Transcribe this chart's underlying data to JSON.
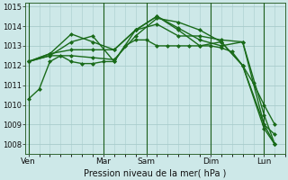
{
  "bg_color": "#cde8e8",
  "grid_color": "#a8cccc",
  "line_color": "#1a6b1a",
  "xlabel": "Pression niveau de la mer( hPa )",
  "ylim": [
    1007.5,
    1015.2
  ],
  "yticks": [
    1008,
    1009,
    1010,
    1011,
    1012,
    1013,
    1014,
    1015
  ],
  "xtick_labels": [
    "Ven",
    "Mar",
    "Sam",
    "Dim",
    "Lun"
  ],
  "xtick_positions": [
    0,
    7,
    11,
    17,
    22
  ],
  "vlines": [
    0,
    7,
    11,
    17,
    22
  ],
  "xlim": [
    -0.3,
    24.0
  ],
  "lines": [
    {
      "x": [
        0,
        1,
        2,
        3,
        4,
        5,
        6,
        7,
        8,
        9,
        10,
        11,
        12,
        13,
        14,
        15,
        16,
        17,
        18,
        19,
        20,
        21,
        22,
        23
      ],
      "y": [
        1010.3,
        1010.8,
        1012.2,
        1012.5,
        1012.2,
        1012.1,
        1012.1,
        1012.2,
        1012.2,
        1013.0,
        1013.3,
        1013.3,
        1013.0,
        1013.0,
        1013.0,
        1013.0,
        1013.0,
        1013.0,
        1012.9,
        1012.7,
        1012.0,
        1011.1,
        1010.0,
        1009.0
      ],
      "marker": "D",
      "lw": 1.0
    },
    {
      "x": [
        0,
        2,
        4,
        6,
        8,
        10,
        12,
        14,
        16,
        18,
        20,
        22,
        23
      ],
      "y": [
        1012.2,
        1012.5,
        1012.5,
        1012.4,
        1012.3,
        1013.5,
        1014.4,
        1014.2,
        1013.8,
        1013.2,
        1012.0,
        1009.0,
        1008.0
      ],
      "marker": "D",
      "lw": 1.0
    },
    {
      "x": [
        0,
        2,
        4,
        6,
        8,
        10,
        12,
        14,
        16,
        18,
        20,
        22,
        23
      ],
      "y": [
        1012.2,
        1012.6,
        1012.8,
        1012.8,
        1012.8,
        1013.8,
        1014.5,
        1013.8,
        1013.0,
        1013.2,
        1012.0,
        1008.8,
        1008.0
      ],
      "marker": "D",
      "lw": 1.0
    },
    {
      "x": [
        0,
        2,
        4,
        6,
        8,
        10,
        12,
        14,
        16,
        18,
        20,
        22,
        23
      ],
      "y": [
        1012.2,
        1012.6,
        1013.6,
        1013.2,
        1012.8,
        1013.8,
        1014.1,
        1013.5,
        1013.5,
        1013.3,
        1013.2,
        1009.0,
        1008.5
      ],
      "marker": "D",
      "lw": 1.0
    },
    {
      "x": [
        0,
        2,
        4,
        6,
        8,
        10,
        12,
        14,
        16,
        18,
        20,
        22,
        23
      ],
      "y": [
        1012.2,
        1012.5,
        1013.2,
        1013.5,
        1012.2,
        1013.8,
        1014.5,
        1013.9,
        1013.3,
        1013.0,
        1013.2,
        1009.5,
        1008.0
      ],
      "marker": "D",
      "lw": 1.0
    }
  ]
}
